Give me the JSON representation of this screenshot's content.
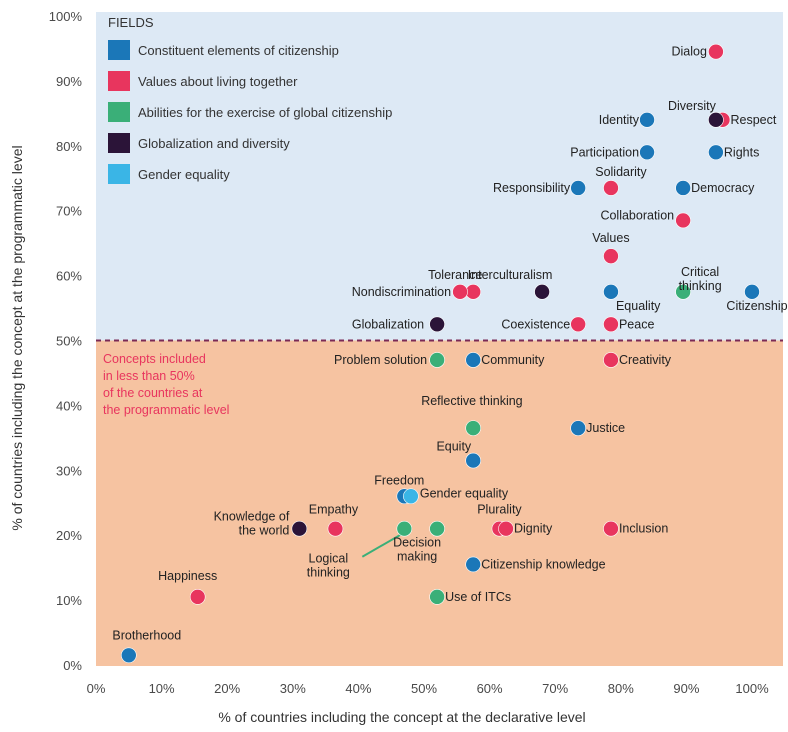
{
  "chart_data": {
    "type": "scatter",
    "xlabel": "% of countries including the concept at the declarative level",
    "ylabel": "% of countries including the concept at the programmatic level",
    "xlim": [
      0,
      100
    ],
    "ylim": [
      0,
      100
    ],
    "x_ticks": [
      "0%",
      "10%",
      "20%",
      "30%",
      "40%",
      "50%",
      "60%",
      "70%",
      "80%",
      "90%",
      "100%"
    ],
    "y_ticks": [
      "0%",
      "10%",
      "20%",
      "30%",
      "40%",
      "50%",
      "60%",
      "70%",
      "80%",
      "90%",
      "100%"
    ],
    "threshold_y": 50,
    "threshold_note": [
      "Concepts included",
      "in less than 50%",
      "of the countries at",
      "the programmatic level"
    ],
    "legend_title": "FIELDS",
    "legend_position": "top-left",
    "colors": {
      "upper_bg": "#dde9f5",
      "lower_bg": "#f6c3a1",
      "threshold_line": "#7b2a55",
      "note_text": "#e8355e"
    },
    "series": [
      {
        "name": "Constituent elements of citizenship",
        "color": "#1b77b8",
        "points": [
          {
            "label": "Identity",
            "x": 84,
            "y": 84
          },
          {
            "label": "Participation",
            "x": 84,
            "y": 79
          },
          {
            "label": "Rights",
            "x": 94.5,
            "y": 79
          },
          {
            "label": "Responsibility",
            "x": 73.5,
            "y": 73.5
          },
          {
            "label": "Democracy",
            "x": 89.5,
            "y": 73.5
          },
          {
            "label": "Equality",
            "x": 78.5,
            "y": 57.5
          },
          {
            "label": "Citizenship",
            "x": 100,
            "y": 57.5
          },
          {
            "label": "Community",
            "x": 57.5,
            "y": 47
          },
          {
            "label": "Justice",
            "x": 73.5,
            "y": 36.5
          },
          {
            "label": "Equity",
            "x": 57.5,
            "y": 31.5
          },
          {
            "label": "Freedom",
            "x": 47,
            "y": 26
          },
          {
            "label": "Citizenship knowledge",
            "x": 57.5,
            "y": 15.5
          },
          {
            "label": "Brotherhood",
            "x": 5,
            "y": 1.5
          }
        ]
      },
      {
        "name": "Values about living together",
        "color": "#e8355e",
        "points": [
          {
            "label": "Dialog",
            "x": 94.5,
            "y": 94.5
          },
          {
            "label": "Respect",
            "x": 95.5,
            "y": 84
          },
          {
            "label": "Solidarity",
            "x": 78.5,
            "y": 73.5
          },
          {
            "label": "Collaboration",
            "x": 89.5,
            "y": 68.5
          },
          {
            "label": "Values",
            "x": 78.5,
            "y": 63
          },
          {
            "label": "Tolerance",
            "x": 57.5,
            "y": 57.5
          },
          {
            "label": "Nondiscrimination",
            "x": 55.5,
            "y": 57.5
          },
          {
            "label": "Coexistence",
            "x": 73.5,
            "y": 52.5
          },
          {
            "label": "Peace",
            "x": 78.5,
            "y": 52.5
          },
          {
            "label": "Creativity",
            "x": 78.5,
            "y": 47
          },
          {
            "label": "Empathy",
            "x": 36.5,
            "y": 21
          },
          {
            "label": "Plurality",
            "x": 61.5,
            "y": 21
          },
          {
            "label": "Dignity",
            "x": 62.5,
            "y": 21
          },
          {
            "label": "Inclusion",
            "x": 78.5,
            "y": 21
          },
          {
            "label": "Happiness",
            "x": 15.5,
            "y": 10.5
          }
        ]
      },
      {
        "name": "Abilities for the exercise of global citizenship",
        "color": "#3aaf78",
        "points": [
          {
            "label": "Critical thinking",
            "x": 89.5,
            "y": 57.5
          },
          {
            "label": "Problem solution",
            "x": 52,
            "y": 47
          },
          {
            "label": "Reflective thinking",
            "x": 57.5,
            "y": 36.5
          },
          {
            "label": "Logical thinking",
            "x": 47,
            "y": 21
          },
          {
            "label": "Decision making",
            "x": 52,
            "y": 21
          },
          {
            "label": "Use of ITCs",
            "x": 52,
            "y": 10.5
          }
        ]
      },
      {
        "name": "Globalization and diversity",
        "color": "#2b1438",
        "points": [
          {
            "label": "Diversity",
            "x": 94.5,
            "y": 84
          },
          {
            "label": "Interculturalism",
            "x": 68,
            "y": 57.5
          },
          {
            "label": "Globalization",
            "x": 52,
            "y": 52.5
          },
          {
            "label": "Knowledge of the world",
            "x": 31,
            "y": 21
          }
        ]
      },
      {
        "name": "Gender equality",
        "color": "#3ab5e6",
        "points": [
          {
            "label": "Gender equality",
            "x": 48,
            "y": 26
          }
        ]
      }
    ]
  }
}
